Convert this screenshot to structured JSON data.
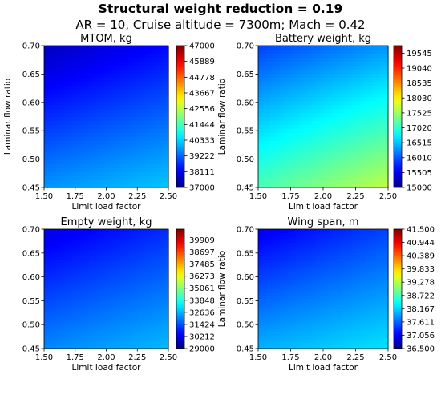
{
  "figure": {
    "title": "Structural weight reduction = ",
    "title_value": "0.19",
    "subtitle": "AR = 10, Cruise altitude = 7300m; Mach = 0.42"
  },
  "colormap": "jet",
  "chart_data": [
    {
      "type": "heatmap",
      "title": "MTOM, kg",
      "xlabel": "Limit load factor",
      "ylabel": "Laminar flow ratio",
      "xlim": [
        1.5,
        2.5
      ],
      "ylim": [
        0.45,
        0.7
      ],
      "x_ticks": [
        "1.50",
        "1.75",
        "2.00",
        "2.25",
        "2.50"
      ],
      "y_ticks": [
        "0.45",
        "0.50",
        "0.55",
        "0.60",
        "0.65",
        "0.70"
      ],
      "colorbar_range": [
        37000,
        47000
      ],
      "colorbar_ticks": [
        "37000",
        "38111",
        "39222",
        "40333",
        "41444",
        "42556",
        "43667",
        "44778",
        "45889",
        "47000"
      ],
      "corner_values": {
        "x1.50_y0.45": 39700,
        "x2.50_y0.45": 40200,
        "x1.50_y0.70": 37600,
        "x2.50_y0.70": 38300
      }
    },
    {
      "type": "heatmap",
      "title": "Battery weight, kg",
      "xlabel": "Limit load factor",
      "ylabel": "Laminar flow ratio",
      "xlim": [
        1.5,
        2.5
      ],
      "ylim": [
        0.45,
        0.7
      ],
      "x_ticks": [
        "1.50",
        "1.75",
        "2.00",
        "2.25",
        "2.50"
      ],
      "y_ticks": [
        "0.45",
        "0.50",
        "0.55",
        "0.60",
        "0.65",
        "0.70"
      ],
      "colorbar_range": [
        15000,
        19800
      ],
      "colorbar_ticks": [
        "15000",
        "15505",
        "16010",
        "16515",
        "17020",
        "17525",
        "18030",
        "18535",
        "19040",
        "19545"
      ],
      "corner_values": {
        "x1.50_y0.45": 17150,
        "x2.50_y0.45": 17700,
        "x1.50_y0.70": 15900,
        "x2.50_y0.70": 16300
      }
    },
    {
      "type": "heatmap",
      "title": "Empty weight, kg",
      "xlabel": "Limit load factor",
      "ylabel": "",
      "xlim": [
        1.5,
        2.5
      ],
      "ylim": [
        0.45,
        0.7
      ],
      "x_ticks": [
        "1.50",
        "1.75",
        "2.00",
        "2.25",
        "2.50"
      ],
      "y_ticks": [
        "0.45",
        "0.50",
        "0.55",
        "0.60",
        "0.65",
        "0.70"
      ],
      "colorbar_range": [
        29000,
        41000
      ],
      "colorbar_ticks": [
        "29000",
        "30212",
        "31424",
        "32636",
        "33848",
        "35061",
        "36273",
        "37485",
        "38697",
        "39909"
      ],
      "corner_values": {
        "x1.50_y0.45": 32100,
        "x2.50_y0.45": 32700,
        "x1.50_y0.70": 30200,
        "x2.50_y0.70": 31000
      }
    },
    {
      "type": "heatmap",
      "title": "Wing span, m",
      "xlabel": "Limit load factor",
      "ylabel": "Laminar flow ratio",
      "xlim": [
        1.5,
        2.5
      ],
      "ylim": [
        0.45,
        0.7
      ],
      "x_ticks": [
        "1.50",
        "1.75",
        "2.00",
        "2.25",
        "2.50"
      ],
      "y_ticks": [
        "0.45",
        "0.50",
        "0.55",
        "0.60",
        "0.65",
        "0.70"
      ],
      "colorbar_range": [
        36.5,
        41.5
      ],
      "colorbar_ticks": [
        "36.500",
        "37.056",
        "37.611",
        "38.167",
        "38.722",
        "39.278",
        "39.833",
        "40.389",
        "40.944",
        "41.500"
      ],
      "corner_values": {
        "x1.50_y0.45": 38.0,
        "x2.50_y0.45": 38.25,
        "x1.50_y0.70": 37.05,
        "x2.50_y0.70": 37.45
      }
    }
  ]
}
